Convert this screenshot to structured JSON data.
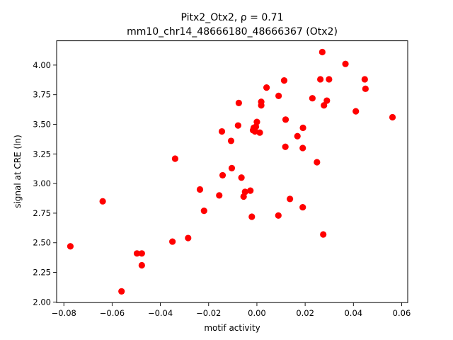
{
  "chart_data": {
    "type": "scatter",
    "title_line1": "Pitx2_Otx2, ρ = 0.71",
    "title_line2": "mm10_chr14_48666180_48666367 (Otx2)",
    "xlabel": "motif activity",
    "ylabel": "signal at CRE (ln)",
    "xlim": [
      -0.083,
      0.0625
    ],
    "ylim": [
      1.995,
      4.205
    ],
    "x_ticks": [
      -0.08,
      -0.06,
      -0.04,
      -0.02,
      0.0,
      0.02,
      0.04,
      0.06
    ],
    "x_tick_labels": [
      "−0.08",
      "−0.06",
      "−0.04",
      "−0.02",
      "0.00",
      "0.02",
      "0.04",
      "0.06"
    ],
    "y_ticks": [
      2.0,
      2.25,
      2.5,
      2.75,
      3.0,
      3.25,
      3.5,
      3.75,
      4.0
    ],
    "y_tick_labels": [
      "2.00",
      "2.25",
      "2.50",
      "2.75",
      "3.00",
      "3.25",
      "3.50",
      "3.75",
      "4.00"
    ],
    "grid": false,
    "marker_color": "#ff0000",
    "points": [
      {
        "x": -0.0773,
        "y": 2.47
      },
      {
        "x": -0.0639,
        "y": 2.85
      },
      {
        "x": -0.0561,
        "y": 2.09
      },
      {
        "x": -0.0497,
        "y": 2.41
      },
      {
        "x": -0.0477,
        "y": 2.41
      },
      {
        "x": -0.0477,
        "y": 2.31
      },
      {
        "x": -0.035,
        "y": 2.51
      },
      {
        "x": -0.0339,
        "y": 3.21
      },
      {
        "x": -0.0285,
        "y": 2.54
      },
      {
        "x": -0.0236,
        "y": 2.95
      },
      {
        "x": -0.0219,
        "y": 2.77
      },
      {
        "x": -0.0156,
        "y": 2.9
      },
      {
        "x": -0.0145,
        "y": 3.44
      },
      {
        "x": -0.0142,
        "y": 3.07
      },
      {
        "x": -0.0107,
        "y": 3.36
      },
      {
        "x": -0.0104,
        "y": 3.13
      },
      {
        "x": -0.0078,
        "y": 3.49
      },
      {
        "x": -0.0075,
        "y": 3.68
      },
      {
        "x": -0.0064,
        "y": 3.05
      },
      {
        "x": -0.0055,
        "y": 2.89
      },
      {
        "x": -0.0049,
        "y": 2.93
      },
      {
        "x": -0.0027,
        "y": 2.94
      },
      {
        "x": -0.0021,
        "y": 2.72
      },
      {
        "x": -0.0016,
        "y": 3.45
      },
      {
        "x": -0.0013,
        "y": 3.47
      },
      {
        "x": -0.0008,
        "y": 3.44
      },
      {
        "x": -0.0004,
        "y": 3.48
      },
      {
        "x": 0.0,
        "y": 3.52
      },
      {
        "x": 0.0012,
        "y": 3.43
      },
      {
        "x": 0.0018,
        "y": 3.66
      },
      {
        "x": 0.0018,
        "y": 3.69
      },
      {
        "x": 0.004,
        "y": 3.81
      },
      {
        "x": 0.0089,
        "y": 2.73
      },
      {
        "x": 0.009,
        "y": 3.74
      },
      {
        "x": 0.0113,
        "y": 3.87
      },
      {
        "x": 0.0118,
        "y": 3.31
      },
      {
        "x": 0.0119,
        "y": 3.54
      },
      {
        "x": 0.0137,
        "y": 2.87
      },
      {
        "x": 0.0168,
        "y": 3.4
      },
      {
        "x": 0.019,
        "y": 3.3
      },
      {
        "x": 0.0191,
        "y": 3.47
      },
      {
        "x": 0.019,
        "y": 2.8
      },
      {
        "x": 0.023,
        "y": 3.72
      },
      {
        "x": 0.0249,
        "y": 3.18
      },
      {
        "x": 0.0263,
        "y": 3.88
      },
      {
        "x": 0.0271,
        "y": 4.11
      },
      {
        "x": 0.0275,
        "y": 2.57
      },
      {
        "x": 0.0278,
        "y": 3.66
      },
      {
        "x": 0.029,
        "y": 3.7
      },
      {
        "x": 0.0299,
        "y": 3.88
      },
      {
        "x": 0.0367,
        "y": 4.01
      },
      {
        "x": 0.041,
        "y": 3.61
      },
      {
        "x": 0.0447,
        "y": 3.88
      },
      {
        "x": 0.045,
        "y": 3.8
      },
      {
        "x": 0.0562,
        "y": 3.56
      }
    ]
  }
}
